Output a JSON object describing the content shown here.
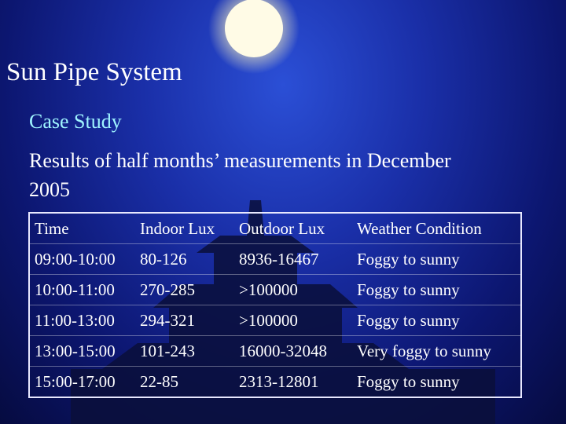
{
  "slide": {
    "title": "Sun Pipe System",
    "subtitle": "Case Study",
    "body": "Results of half months’ measurements in December 2005",
    "table": {
      "header": [
        "Time",
        "Indoor Lux",
        "Outdoor Lux",
        "Weather Condition"
      ],
      "rows": [
        [
          "09:00-10:00",
          "80-126",
          "8936-16467",
          "Foggy to sunny"
        ],
        [
          "10:00-11:00",
          "270-285",
          ">100000",
          "Foggy to sunny"
        ],
        [
          "11:00-13:00",
          "294-321",
          ">100000",
          "Foggy to sunny"
        ],
        [
          "13:00-15:00",
          "101-243",
          "16000-32048",
          "Very foggy to sunny"
        ],
        [
          "15:00-17:00",
          "22-85",
          "2313-12801",
          "Foggy to sunny"
        ]
      ]
    }
  }
}
